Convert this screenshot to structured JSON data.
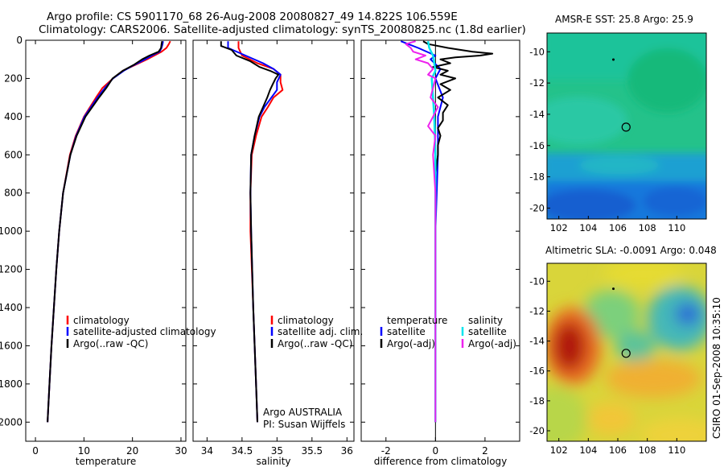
{
  "header": {
    "line1": "Argo profile: CS 5901170_68 26-Aug-2008 20080827_49 14.822S 106.559E",
    "line2": "Climatology: CARS2006. Satellite-adjusted climatology: synTS_20080825.nc (1.8d earlier)"
  },
  "side_text": "CSIRO 01-Sep-2008 10:35:10",
  "colors": {
    "red": "#ff0000",
    "blue": "#0000ff",
    "black": "#000000",
    "cyan": "#00e5ee",
    "magenta": "#ee22ee"
  },
  "chart_data": [
    {
      "type": "line",
      "panel": "temperature",
      "xlabel": "temperature",
      "ylabel": "",
      "xlim": [
        -2,
        31
      ],
      "ylim": [
        2100,
        0
      ],
      "xticks": [
        0,
        10,
        20,
        30
      ],
      "yticks": [
        0,
        200,
        400,
        600,
        800,
        1000,
        1200,
        1400,
        1600,
        1800,
        2000
      ],
      "legend": [
        "climatology",
        "satellite-adjusted climatology",
        "Argo(..raw -QC)"
      ],
      "series": [
        {
          "color": "red",
          "depth": [
            5,
            20,
            40,
            60,
            80,
            100,
            130,
            160,
            200,
            250,
            300,
            400,
            500,
            600,
            800,
            1000,
            1200,
            1400,
            1600,
            1800,
            2000
          ],
          "values": [
            27.8,
            27.5,
            27.0,
            26.0,
            24.5,
            23.0,
            20.5,
            18.0,
            16.0,
            13.8,
            12.5,
            10.0,
            8.3,
            7.1,
            5.7,
            4.9,
            4.3,
            3.8,
            3.3,
            2.9,
            2.5
          ]
        },
        {
          "color": "blue",
          "depth": [
            5,
            20,
            40,
            60,
            80,
            100,
            130,
            160,
            200,
            250,
            300,
            400,
            500,
            600,
            800,
            1000,
            1200,
            1400,
            1600,
            1800,
            2000
          ],
          "values": [
            26.3,
            26.2,
            26.0,
            25.6,
            24.0,
            22.6,
            20.3,
            18.2,
            16.0,
            14.3,
            12.8,
            10.1,
            8.4,
            7.2,
            5.7,
            4.9,
            4.3,
            3.8,
            3.3,
            2.9,
            2.5
          ]
        },
        {
          "color": "black",
          "depth": [
            5,
            20,
            40,
            60,
            80,
            100,
            130,
            160,
            200,
            250,
            300,
            400,
            500,
            600,
            800,
            1000,
            1200,
            1400,
            1600,
            1800,
            2000
          ],
          "values": [
            26.1,
            26.0,
            25.9,
            25.4,
            23.5,
            22.0,
            20.2,
            18.0,
            15.9,
            14.6,
            13.1,
            10.3,
            8.5,
            7.2,
            5.7,
            4.9,
            4.3,
            3.8,
            3.3,
            2.9,
            2.5
          ]
        }
      ]
    },
    {
      "type": "line",
      "panel": "salinity",
      "xlabel": "salinity",
      "ylabel": "",
      "xlim": [
        33.8,
        36.1
      ],
      "ylim": [
        2100,
        0
      ],
      "xticks": [
        34,
        34.5,
        35,
        35.5,
        36
      ],
      "legend": [
        "climatology",
        "satellite adj. clim.",
        "Argo(..raw -QC)"
      ],
      "annotation": [
        "Argo AUSTRALIA",
        "PI: Susan Wijffels"
      ],
      "series": [
        {
          "color": "red",
          "depth": [
            5,
            40,
            80,
            120,
            150,
            180,
            220,
            260,
            300,
            350,
            400,
            500,
            600,
            800,
            1000,
            1400,
            1800,
            2000
          ],
          "values": [
            34.45,
            34.45,
            34.5,
            34.72,
            34.95,
            35.05,
            35.05,
            35.08,
            34.95,
            34.87,
            34.78,
            34.7,
            34.64,
            34.62,
            34.62,
            34.66,
            34.7,
            34.72
          ]
        },
        {
          "color": "blue",
          "depth": [
            5,
            40,
            80,
            120,
            150,
            180,
            220,
            260,
            300,
            350,
            400,
            500,
            600,
            800,
            1000,
            1400,
            1800,
            2000
          ],
          "values": [
            34.3,
            34.3,
            34.55,
            34.8,
            34.95,
            35.05,
            35.0,
            35.0,
            34.92,
            34.82,
            34.75,
            34.68,
            34.63,
            34.62,
            34.63,
            34.66,
            34.7,
            34.72
          ]
        },
        {
          "color": "black",
          "depth": [
            5,
            10,
            20,
            30,
            50,
            80,
            110,
            140,
            160,
            180,
            200,
            230,
            260,
            300,
            350,
            400,
            500,
            600,
            800,
            1000,
            1400,
            1800,
            2000
          ],
          "values": [
            34.2,
            34.2,
            34.2,
            34.2,
            34.35,
            34.42,
            34.62,
            34.75,
            34.9,
            35.02,
            34.98,
            34.94,
            34.9,
            34.86,
            34.8,
            34.74,
            34.68,
            34.63,
            34.62,
            34.63,
            34.66,
            34.7,
            34.72
          ]
        }
      ]
    },
    {
      "type": "line",
      "panel": "difference",
      "xlabel": "difference from climatology",
      "ylabel": "",
      "xlim": [
        -3,
        3.4
      ],
      "ylim": [
        2100,
        0
      ],
      "xticks": [
        -2,
        0,
        2
      ],
      "legend_headers": [
        "temperature",
        "salinity"
      ],
      "legend": [
        "satellite",
        "Argo(-adj)",
        "satellite",
        "Argo(-adj)"
      ],
      "series": [
        {
          "name": "temperature satellite",
          "color": "blue",
          "depth": [
            5,
            40,
            80,
            100,
            150,
            200,
            300,
            400,
            600,
            800,
            1000,
            1400,
            2000
          ],
          "values": [
            -1.4,
            -0.7,
            0.0,
            -0.2,
            0.2,
            0.0,
            0.3,
            0.1,
            0.1,
            0.05,
            0.0,
            0.0,
            0.0
          ]
        },
        {
          "name": "temperature Argo(-adj)",
          "color": "black",
          "depth": [
            5,
            20,
            40,
            60,
            70,
            80,
            90,
            100,
            120,
            140,
            160,
            180,
            200,
            230,
            260,
            300,
            340,
            380,
            420,
            460,
            500,
            550,
            600,
            700,
            800,
            1000,
            1200,
            1400,
            1600,
            1800,
            2000
          ],
          "values": [
            -0.5,
            -0.3,
            0.5,
            1.5,
            2.3,
            1.8,
            0.8,
            0.2,
            0.6,
            -0.1,
            0.5,
            0.2,
            0.8,
            0.2,
            0.6,
            0.1,
            0.5,
            0.3,
            0.3,
            0.1,
            0.2,
            0.1,
            0.1,
            0.0,
            0.0,
            0.0,
            0.0,
            0.0,
            0.0,
            0.0,
            0.0
          ]
        },
        {
          "name": "salinity satellite",
          "color": "cyan",
          "depth": [
            5,
            40,
            80,
            120,
            160,
            200,
            300,
            400,
            600,
            800,
            1000,
            1400,
            2000
          ],
          "values": [
            -0.3,
            -0.25,
            -0.1,
            -0.05,
            0.0,
            -0.15,
            -0.1,
            -0.05,
            0.0,
            0.0,
            0.0,
            0.0,
            0.0
          ]
        },
        {
          "name": "salinity Argo(-adj)",
          "color": "magenta",
          "depth": [
            5,
            20,
            40,
            60,
            80,
            100,
            120,
            150,
            180,
            200,
            250,
            300,
            350,
            400,
            450,
            500,
            600,
            800,
            1000,
            1400,
            2000
          ],
          "values": [
            -0.8,
            -1.2,
            -1.0,
            -0.9,
            -0.4,
            -0.8,
            -0.3,
            -0.1,
            -0.3,
            0.0,
            -0.1,
            -0.2,
            0.1,
            -0.1,
            -0.3,
            0.0,
            -0.1,
            0.0,
            0.0,
            0.0,
            0.0
          ]
        }
      ]
    },
    {
      "type": "heatmap",
      "panel": "sst-map",
      "title": "AMSR-E SST: 25.8 Argo: 25.9",
      "xlim": [
        101.2,
        112
      ],
      "ylim": [
        -20.7,
        -8.8
      ],
      "xticks": [
        102,
        104,
        106,
        108,
        110
      ],
      "yticks": [
        -10,
        -12,
        -14,
        -16,
        -18,
        -20
      ],
      "profile_position": [
        106.56,
        -14.82
      ],
      "previous_position": [
        105.7,
        -10.5
      ]
    },
    {
      "type": "heatmap",
      "panel": "sla-map",
      "title": "Altimetric SLA: -0.0091 Argo: 0.048",
      "xlim": [
        101.2,
        112
      ],
      "ylim": [
        -20.7,
        -8.8
      ],
      "xticks": [
        102,
        104,
        106,
        108,
        110
      ],
      "yticks": [
        -10,
        -12,
        -14,
        -16,
        -18,
        -20
      ],
      "profile_position": [
        106.56,
        -14.82
      ],
      "previous_position": [
        105.7,
        -10.5
      ]
    }
  ]
}
